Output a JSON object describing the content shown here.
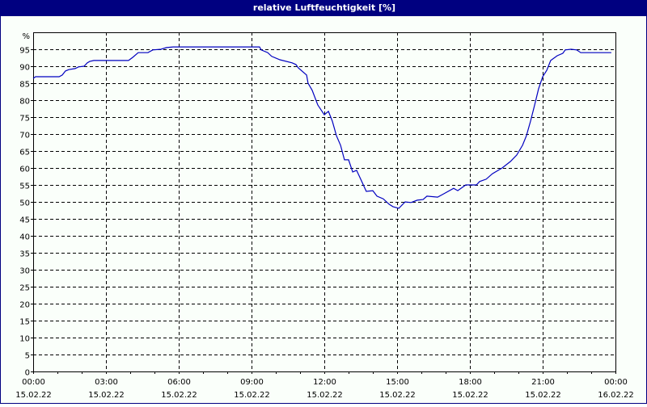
{
  "window": {
    "title": "relative Luftfeuchtigkeit [%]"
  },
  "colors": {
    "titlebar": "#000080",
    "line": "#0000c0",
    "grid": "#000000",
    "background": "#fafffa"
  },
  "chart_data": {
    "type": "line",
    "title": "relative Luftfeuchtigkeit [%]",
    "xlabel": "",
    "ylabel": "%",
    "ylim": [
      0,
      100
    ],
    "xlim_hours": [
      0,
      24
    ],
    "grid": true,
    "y_ticks": [
      0,
      5,
      10,
      15,
      20,
      25,
      30,
      35,
      40,
      45,
      50,
      55,
      60,
      65,
      70,
      75,
      80,
      85,
      90,
      95
    ],
    "y_unit_label": "%",
    "x_ticks": [
      {
        "time": "00:00",
        "date": "15.02.22"
      },
      {
        "time": "03:00",
        "date": "15.02.22"
      },
      {
        "time": "06:00",
        "date": "15.02.22"
      },
      {
        "time": "09:00",
        "date": "15.02.22"
      },
      {
        "time": "12:00",
        "date": "15.02.22"
      },
      {
        "time": "15:00",
        "date": "15.02.22"
      },
      {
        "time": "18:00",
        "date": "15.02.22"
      },
      {
        "time": "21:00",
        "date": "15.02.22"
      },
      {
        "time": "00:00",
        "date": "16.02.22"
      }
    ],
    "series": [
      {
        "name": "relative Luftfeuchtigkeit",
        "x_hours": [
          0,
          0.1,
          1.07,
          1.2,
          1.33,
          1.47,
          1.73,
          1.87,
          2.1,
          2.23,
          2.33,
          2.5,
          3.93,
          4.1,
          4.33,
          4.73,
          4.93,
          5.27,
          5.5,
          5.77,
          9.33,
          9.4,
          9.67,
          9.83,
          10.17,
          10.67,
          10.83,
          10.93,
          11.27,
          11.33,
          11.5,
          11.73,
          12.0,
          12.17,
          12.33,
          12.5,
          12.67,
          12.83,
          13.0,
          13.17,
          13.33,
          13.5,
          13.73,
          14.0,
          14.17,
          14.43,
          14.67,
          14.83,
          15.07,
          15.33,
          15.57,
          15.83,
          16.07,
          16.23,
          16.67,
          16.93,
          17.33,
          17.5,
          17.83,
          18.27,
          18.4,
          18.67,
          18.93,
          19.33,
          19.67,
          19.93,
          20.17,
          20.33,
          20.5,
          20.67,
          20.83,
          21.0,
          21.17,
          21.33,
          21.6,
          21.83,
          21.93,
          22.17,
          22.4,
          22.57,
          23.83
        ],
        "values": [
          86.4,
          86.9,
          86.9,
          87.4,
          88.6,
          89.0,
          89.3,
          89.8,
          90.0,
          91.0,
          91.4,
          91.7,
          91.7,
          92.6,
          94.0,
          94.0,
          94.8,
          95.0,
          95.5,
          95.7,
          95.7,
          94.8,
          94.0,
          92.9,
          91.9,
          91.0,
          90.5,
          89.5,
          87.4,
          85.0,
          82.9,
          78.6,
          75.7,
          76.7,
          73.8,
          69.5,
          66.7,
          62.4,
          62.4,
          58.8,
          59.3,
          56.7,
          53.1,
          53.3,
          51.7,
          50.9,
          49.3,
          48.6,
          48.1,
          50.0,
          49.8,
          50.5,
          50.7,
          51.7,
          51.4,
          52.4,
          54.0,
          53.3,
          55.0,
          55.0,
          56.0,
          56.7,
          58.3,
          60.0,
          61.9,
          63.8,
          66.7,
          69.5,
          73.8,
          78.6,
          83.3,
          86.9,
          88.8,
          91.7,
          93.1,
          93.8,
          94.8,
          95.0,
          94.8,
          94.0,
          94.0
        ]
      }
    ]
  }
}
